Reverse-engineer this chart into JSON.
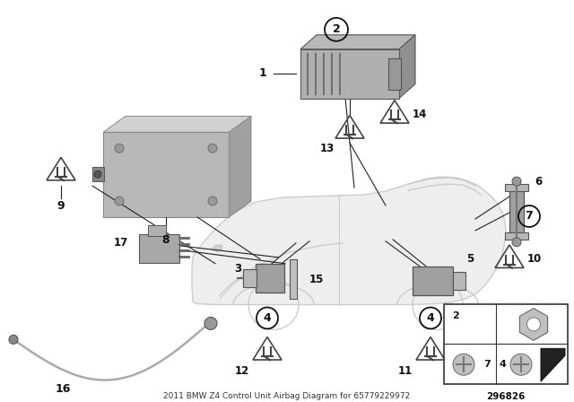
{
  "title": "2011 BMW Z4 Control Unit Airbag Diagram for 65779229972",
  "bg_color": "#ffffff",
  "fig_width": 6.4,
  "fig_height": 4.48,
  "dpi": 100,
  "ref_number": "296826",
  "car": {
    "color": "#cccccc",
    "lw": 1.0
  },
  "line_color": "#222222",
  "text_color": "#111111",
  "part_gray": "#a0a0a0",
  "part_dark": "#707070",
  "part_light": "#c8c8c8"
}
